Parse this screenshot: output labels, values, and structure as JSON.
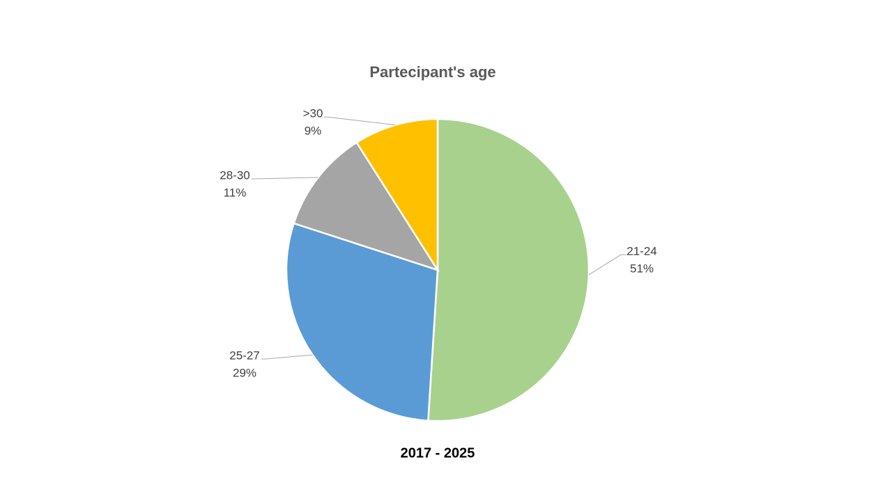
{
  "chart_data": {
    "type": "pie",
    "title": "Partecipant's age",
    "subtitle": "2017 - 2025",
    "categories": [
      "21-24",
      "25-27",
      "28-30",
      ">30"
    ],
    "values": [
      51,
      29,
      11,
      9
    ],
    "value_labels": [
      "51%",
      "29%",
      "11%",
      "9%"
    ],
    "colors": [
      "#a9d18e",
      "#5b9bd5",
      "#a5a5a5",
      "#ffc000"
    ]
  }
}
